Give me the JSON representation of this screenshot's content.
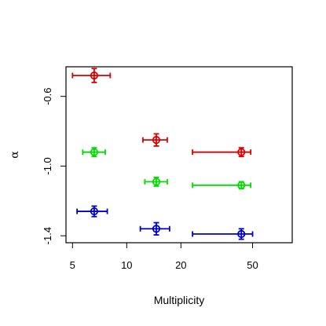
{
  "chart_data": {
    "type": "scatter",
    "title": "",
    "xlabel": "Multiplicity",
    "ylabel": "α",
    "x_scale": "log",
    "xlim": [
      4.6,
      83
    ],
    "ylim": [
      -1.44,
      -0.43
    ],
    "x_ticks": [
      5,
      10,
      20,
      50
    ],
    "x_tick_labels": [
      "5",
      "10",
      "20",
      "50"
    ],
    "y_ticks": [
      -1.4,
      -1.0,
      -0.6
    ],
    "y_tick_labels": [
      "-1.4",
      "-1.0",
      "-0.6"
    ],
    "grid": false,
    "legend": "none",
    "series": [
      {
        "color": "#dd0000",
        "points": [
          {
            "x": 6.6,
            "x_low": 5.0,
            "x_high": 8.1,
            "y": -0.48,
            "y_err": 0.04
          },
          {
            "x": 14.6,
            "x_low": 12.3,
            "x_high": 16.8,
            "y": -0.85,
            "y_err": 0.035
          },
          {
            "x": 43.3,
            "x_low": 23.2,
            "x_high": 48.8,
            "y": -0.92,
            "y_err": 0.025
          }
        ]
      },
      {
        "color": "#00dd00",
        "points": [
          {
            "x": 6.6,
            "x_low": 5.7,
            "x_high": 7.6,
            "y": -0.92,
            "y_err": 0.025
          },
          {
            "x": 14.6,
            "x_low": 12.6,
            "x_high": 16.8,
            "y": -1.09,
            "y_err": 0.025
          },
          {
            "x": 43.3,
            "x_low": 23.2,
            "x_high": 48.8,
            "y": -1.11,
            "y_err": 0.02
          }
        ]
      },
      {
        "color": "#0000cc",
        "points": [
          {
            "x": 6.6,
            "x_low": 5.3,
            "x_high": 7.8,
            "y": -1.26,
            "y_err": 0.03
          },
          {
            "x": 14.6,
            "x_low": 11.9,
            "x_high": 17.3,
            "y": -1.36,
            "y_err": 0.035
          },
          {
            "x": 43.3,
            "x_low": 23.2,
            "x_high": 50.0,
            "y": -1.39,
            "y_err": 0.03
          }
        ]
      }
    ]
  }
}
